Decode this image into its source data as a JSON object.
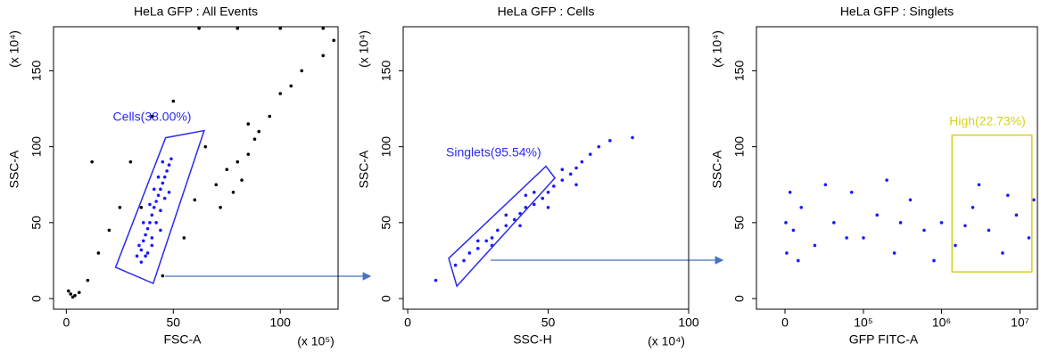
{
  "chart_data": [
    {
      "type": "scatter",
      "title": "HeLa GFP : All Events",
      "xlabel": "FSC-A",
      "ylabel": "SSC-A",
      "xunit": "(x 10⁵)",
      "yunit": "(x 10⁴)",
      "xlim": [
        -6,
        127
      ],
      "ylim": [
        -7,
        179
      ],
      "xticks": [
        0,
        50,
        100
      ],
      "yticks": [
        0,
        50,
        100,
        150
      ],
      "series": [
        {
          "color": "#000000",
          "x": [
            2,
            3,
            1,
            4,
            6,
            10,
            15,
            20,
            25,
            55,
            60,
            70,
            75,
            80,
            85,
            82,
            78,
            88,
            90,
            72,
            95,
            100,
            110,
            120,
            125,
            105,
            65,
            40,
            30,
            12,
            62,
            80,
            100,
            120,
            50,
            45,
            35,
            85
          ],
          "y": [
            3,
            1,
            5,
            2,
            4,
            12,
            30,
            45,
            60,
            40,
            65,
            75,
            85,
            90,
            95,
            78,
            70,
            105,
            110,
            60,
            120,
            135,
            150,
            160,
            170,
            140,
            100,
            120,
            90,
            90,
            178,
            178,
            178,
            178,
            130,
            15,
            60,
            115
          ]
        },
        {
          "color": "#1a1aff",
          "x": [
            33,
            35,
            36,
            37,
            38,
            39,
            40,
            41,
            42,
            43,
            44,
            45,
            46,
            47,
            48,
            49,
            34,
            38,
            40,
            42,
            44,
            46,
            36,
            39,
            41,
            43,
            45,
            35,
            37,
            40,
            44,
            48
          ],
          "y": [
            28,
            32,
            38,
            42,
            46,
            50,
            55,
            60,
            64,
            68,
            72,
            76,
            80,
            84,
            88,
            92,
            35,
            30,
            40,
            50,
            58,
            66,
            50,
            62,
            72,
            80,
            90,
            24,
            28,
            35,
            45,
            70
          ]
        }
      ],
      "gates": [
        {
          "label": "Cells(38.00%)",
          "color": "#2a2af0",
          "x": [
            23.0,
            40.6,
            64.4,
            46.4
          ],
          "y": [
            20.6,
            10.0,
            110.6,
            105.9
          ]
        }
      ]
    },
    {
      "type": "scatter",
      "title": "HeLa GFP : Cells",
      "xlabel": "SSC-H",
      "ylabel": "SSC-A",
      "xunit": "(x 10⁴)",
      "yunit": "(x 10⁴)",
      "xlim": [
        -1.6,
        100
      ],
      "ylim": [
        -7,
        179
      ],
      "xticks": [
        0,
        50,
        100
      ],
      "yticks": [
        0,
        50,
        100,
        150
      ],
      "series": [
        {
          "color": "#1a1aff",
          "x": [
            17,
            20,
            22,
            25,
            28,
            30,
            32,
            35,
            38,
            40,
            42,
            45,
            48,
            50,
            52,
            55,
            58,
            60,
            62,
            65,
            68,
            72,
            80,
            35,
            40,
            45,
            30,
            50,
            55,
            25,
            10,
            42,
            60
          ],
          "y": [
            22,
            25,
            30,
            33,
            38,
            40,
            45,
            48,
            52,
            56,
            60,
            62,
            66,
            70,
            74,
            78,
            82,
            86,
            90,
            95,
            100,
            104,
            106,
            55,
            48,
            70,
            35,
            60,
            85,
            38,
            12,
            68,
            75
          ]
        }
      ],
      "gates": [
        {
          "label": "Singlets(95.54%)",
          "color": "#2a2af0",
          "x": [
            14.6,
            17.5,
            52.4,
            49.2
          ],
          "y": [
            26.5,
            8.2,
            79.4,
            87.1
          ]
        }
      ]
    },
    {
      "type": "scatter",
      "title": "HeLa GFP : Singlets",
      "xlabel": "GFP FITC-A",
      "ylabel": "SSC-A",
      "yunit": "(x 10⁴)",
      "xscale": "biexponential",
      "xlim": [
        -19000,
        16700000
      ],
      "ylim": [
        -7,
        179
      ],
      "xticks": [
        0,
        {
          "value": 100000,
          "label": "10⁵"
        },
        {
          "value": 1000000,
          "label": "10⁶"
        },
        {
          "value": 10000000,
          "label": "10⁷"
        }
      ],
      "yticks": [
        0,
        50,
        100,
        150
      ],
      "series": [
        {
          "color": "#1a1aff",
          "x": [
            1000,
            5000,
            10000,
            20000,
            40000,
            70000,
            100000,
            150000,
            250000,
            400000,
            600000,
            1000000,
            1500000,
            2500000,
            4000000,
            6000000,
            9000000,
            13000000,
            3000,
            8000,
            30000,
            200000,
            800000,
            3000000,
            15000000,
            500,
            60000,
            300000,
            2000000,
            7000000
          ],
          "y": [
            30,
            45,
            60,
            35,
            50,
            70,
            40,
            55,
            30,
            65,
            45,
            50,
            35,
            60,
            45,
            30,
            55,
            40,
            70,
            25,
            75,
            78,
            25,
            75,
            65,
            50,
            40,
            50,
            48,
            68
          ]
        }
      ],
      "gates": [
        {
          "label": "High(22.73%)",
          "color": "#d8d020",
          "x": [
            1360000,
            14200000,
            14200000,
            1360000
          ],
          "y": [
            17.6,
            17.6,
            107.6,
            107.6
          ]
        }
      ]
    }
  ]
}
